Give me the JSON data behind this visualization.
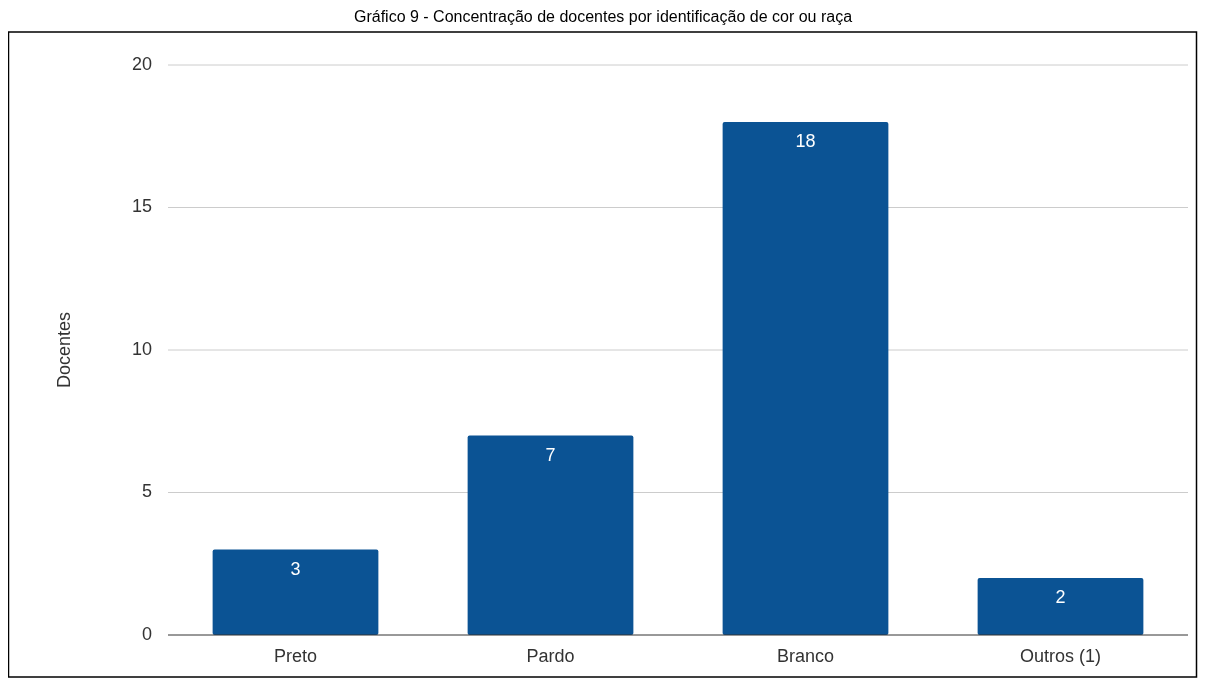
{
  "chart_data": {
    "type": "bar",
    "title": "Gráfico 9 - Concentração de docentes por identificação de cor ou raça",
    "ylabel": "Docentes",
    "categories": [
      "Preto",
      "Pardo",
      "Branco",
      "Outros (1)"
    ],
    "values": [
      3,
      7,
      18,
      2
    ],
    "color": "#0b5394",
    "ylim": [
      0,
      20
    ],
    "yticks": [
      0,
      5,
      10,
      15,
      20
    ],
    "grid": "y",
    "data_labels": true
  }
}
